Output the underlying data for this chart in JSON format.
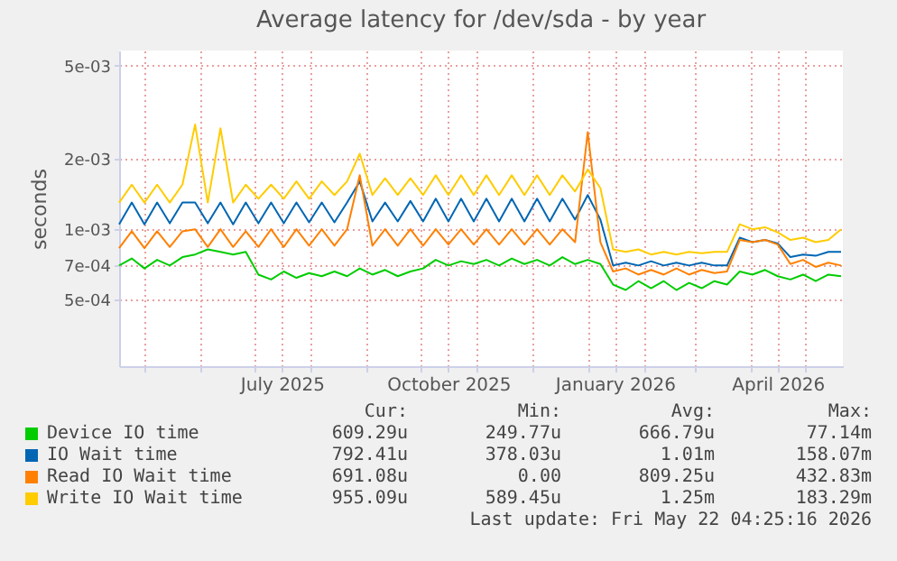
{
  "chart_data": {
    "type": "line",
    "title": "Average latency for /dev/sda - by year",
    "ylabel": "seconds",
    "log": true,
    "grid": true,
    "legend": "bottom",
    "line_style": "solid",
    "xlim": [
      "2025-04-17",
      "2026-05-22"
    ],
    "xticks": [
      {
        "value": "2025-05-01",
        "label": null
      },
      {
        "value": "2025-06-01",
        "label": null
      },
      {
        "value": "2025-07-01",
        "label": null
      },
      {
        "value": "2025-07-16",
        "label": "July 2025"
      },
      {
        "value": "2025-08-01",
        "label": null
      },
      {
        "value": "2025-09-01",
        "label": null
      },
      {
        "value": "2025-10-01",
        "label": null
      },
      {
        "value": "2025-10-16",
        "label": "October 2025"
      },
      {
        "value": "2025-11-01",
        "label": null
      },
      {
        "value": "2025-12-01",
        "label": null
      },
      {
        "value": "2026-01-01",
        "label": null
      },
      {
        "value": "2026-01-16",
        "label": "January 2026"
      },
      {
        "value": "2026-02-01",
        "label": null
      },
      {
        "value": "2026-03-01",
        "label": null
      },
      {
        "value": "2026-04-01",
        "label": null
      },
      {
        "value": "2026-04-16",
        "label": "April 2026"
      },
      {
        "value": "2026-05-01",
        "label": null
      }
    ],
    "ylim": [
      0.00026,
      0.0058
    ],
    "yticks": [
      {
        "value": 0.0005,
        "label": "5e-04"
      },
      {
        "value": 0.0007,
        "label": "7e-04"
      },
      {
        "value": 0.001,
        "label": "1e-03"
      },
      {
        "value": 0.002,
        "label": "2e-03"
      },
      {
        "value": 0.005,
        "label": "5e-03"
      }
    ],
    "x": [
      "2025-04-17",
      "2025-04-24",
      "2025-05-01",
      "2025-05-08",
      "2025-05-15",
      "2025-05-22",
      "2025-05-29",
      "2025-06-05",
      "2025-06-12",
      "2025-06-19",
      "2025-06-26",
      "2025-07-03",
      "2025-07-10",
      "2025-07-17",
      "2025-07-24",
      "2025-07-31",
      "2025-08-07",
      "2025-08-14",
      "2025-08-21",
      "2025-08-28",
      "2025-09-04",
      "2025-09-11",
      "2025-09-18",
      "2025-09-25",
      "2025-10-02",
      "2025-10-09",
      "2025-10-16",
      "2025-10-23",
      "2025-10-30",
      "2025-11-06",
      "2025-11-13",
      "2025-11-20",
      "2025-11-27",
      "2025-12-04",
      "2025-12-11",
      "2025-12-18",
      "2025-12-25",
      "2026-01-01",
      "2026-01-08",
      "2026-01-15",
      "2026-01-22",
      "2026-01-29",
      "2026-02-05",
      "2026-02-12",
      "2026-02-19",
      "2026-02-26",
      "2026-03-05",
      "2026-03-12",
      "2026-03-19",
      "2026-03-26",
      "2026-04-02",
      "2026-04-09",
      "2026-04-16",
      "2026-04-23",
      "2026-04-30",
      "2026-05-07",
      "2026-05-14",
      "2026-05-21"
    ],
    "series": [
      {
        "name": "Device IO time",
        "color": "#00cc00",
        "values": [
          0.0007,
          0.00075,
          0.00068,
          0.00074,
          0.0007,
          0.00076,
          0.00078,
          0.00082,
          0.0008,
          0.00078,
          0.0008,
          0.00064,
          0.00061,
          0.00066,
          0.00062,
          0.00065,
          0.00063,
          0.00066,
          0.00063,
          0.00068,
          0.00064,
          0.00067,
          0.00063,
          0.00066,
          0.00068,
          0.00074,
          0.0007,
          0.00073,
          0.00071,
          0.00074,
          0.0007,
          0.00075,
          0.00071,
          0.00074,
          0.0007,
          0.00076,
          0.00071,
          0.00074,
          0.00071,
          0.00058,
          0.00055,
          0.0006,
          0.00056,
          0.0006,
          0.00055,
          0.00059,
          0.00056,
          0.0006,
          0.00058,
          0.00066,
          0.00064,
          0.00067,
          0.00063,
          0.00061,
          0.00064,
          0.0006,
          0.00064,
          0.00063
        ]
      },
      {
        "name": "IO Wait time",
        "color": "#0066b3",
        "values": [
          0.00105,
          0.0013,
          0.00105,
          0.0013,
          0.00106,
          0.0013,
          0.0013,
          0.00106,
          0.0013,
          0.00105,
          0.0013,
          0.00106,
          0.0013,
          0.00106,
          0.0013,
          0.00107,
          0.0013,
          0.00107,
          0.0013,
          0.0016,
          0.00108,
          0.0013,
          0.00108,
          0.00132,
          0.00108,
          0.00135,
          0.00108,
          0.00135,
          0.00108,
          0.00135,
          0.00108,
          0.00135,
          0.00108,
          0.00135,
          0.00108,
          0.00135,
          0.0011,
          0.0014,
          0.0011,
          0.0007,
          0.00072,
          0.0007,
          0.00073,
          0.0007,
          0.00072,
          0.0007,
          0.00072,
          0.0007,
          0.0007,
          0.00092,
          0.00088,
          0.0009,
          0.00087,
          0.00076,
          0.00078,
          0.00077,
          0.0008,
          0.0008
        ]
      },
      {
        "name": "Read IO Wait time",
        "color": "#ff8000",
        "values": [
          0.00083,
          0.00098,
          0.00083,
          0.00098,
          0.00084,
          0.00098,
          0.001,
          0.00084,
          0.001,
          0.00084,
          0.00098,
          0.00084,
          0.001,
          0.00084,
          0.001,
          0.00085,
          0.001,
          0.00085,
          0.001,
          0.0017,
          0.00085,
          0.001,
          0.00085,
          0.001,
          0.00085,
          0.001,
          0.00086,
          0.001,
          0.00086,
          0.001,
          0.00086,
          0.001,
          0.00086,
          0.001,
          0.00086,
          0.001,
          0.00088,
          0.0026,
          0.00088,
          0.00066,
          0.00068,
          0.00064,
          0.00067,
          0.00064,
          0.00068,
          0.00064,
          0.00067,
          0.00065,
          0.00066,
          0.0009,
          0.00088,
          0.0009,
          0.00086,
          0.00071,
          0.00074,
          0.00069,
          0.00072,
          0.0007
        ]
      },
      {
        "name": "Write IO Wait time",
        "color": "#ffcc00",
        "values": [
          0.0013,
          0.00155,
          0.0013,
          0.00155,
          0.0013,
          0.00155,
          0.0028,
          0.0013,
          0.0027,
          0.0013,
          0.00155,
          0.00135,
          0.00155,
          0.00135,
          0.0016,
          0.00135,
          0.0016,
          0.0014,
          0.0016,
          0.0021,
          0.0014,
          0.00165,
          0.0014,
          0.00165,
          0.0014,
          0.0017,
          0.0014,
          0.0017,
          0.0014,
          0.0017,
          0.0014,
          0.0017,
          0.0014,
          0.0017,
          0.0014,
          0.0017,
          0.00145,
          0.0018,
          0.0015,
          0.00082,
          0.0008,
          0.00082,
          0.00078,
          0.0008,
          0.00078,
          0.0008,
          0.00079,
          0.0008,
          0.0008,
          0.00105,
          0.001,
          0.00102,
          0.00097,
          0.0009,
          0.00092,
          0.00088,
          0.0009,
          0.001
        ]
      }
    ],
    "annotations": [
      "Cur:",
      "Min:",
      "Avg:",
      "Max:",
      "609.29u",
      "249.77u",
      "666.79u",
      "77.14m",
      "792.41u",
      "378.03u",
      "1.01m",
      "158.07m",
      "691.08u",
      "0.00",
      "809.25u",
      "432.83m",
      "955.09u",
      "589.45u",
      "1.25m",
      "183.29m",
      "Last update: Fri May 22 04:25:16 2026"
    ]
  }
}
